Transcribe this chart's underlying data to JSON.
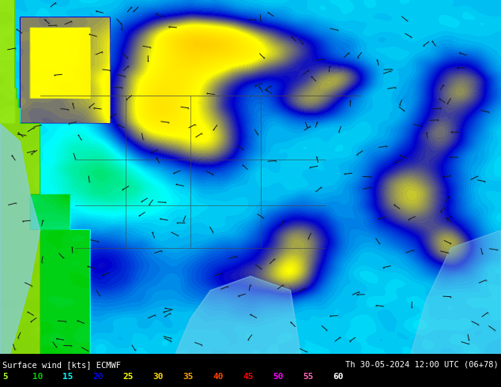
{
  "title_left": "Surface wind [kts] ECMWF",
  "title_right": "Th 30-05-2024 12:00 UTC (06+78)",
  "colorbar_values": [
    5,
    10,
    15,
    20,
    25,
    30,
    35,
    40,
    45,
    50,
    55,
    60
  ],
  "colorbar_text_colors": [
    "#adff2f",
    "#00cd00",
    "#00ffff",
    "#0000ff",
    "#ffff00",
    "#ffd700",
    "#ffa500",
    "#ff4500",
    "#ff0000",
    "#ff00ff",
    "#ff69b4",
    "#ffffff"
  ],
  "bg_color": "#000000",
  "figsize": [
    6.34,
    4.9
  ],
  "dpi": 100,
  "wind_colors": [
    [
      0.0,
      "#adff2f"
    ],
    [
      0.08,
      "#7ccd00"
    ],
    [
      0.17,
      "#00cd00"
    ],
    [
      0.25,
      "#00ffff"
    ],
    [
      0.33,
      "#0000cd"
    ],
    [
      0.42,
      "#ffff00"
    ],
    [
      0.5,
      "#ffd700"
    ],
    [
      0.58,
      "#ffa500"
    ],
    [
      0.67,
      "#ff4500"
    ],
    [
      0.75,
      "#ff0000"
    ],
    [
      0.83,
      "#ee00ee"
    ],
    [
      0.92,
      "#ff69b4"
    ],
    [
      1.0,
      "#ffffff"
    ]
  ]
}
